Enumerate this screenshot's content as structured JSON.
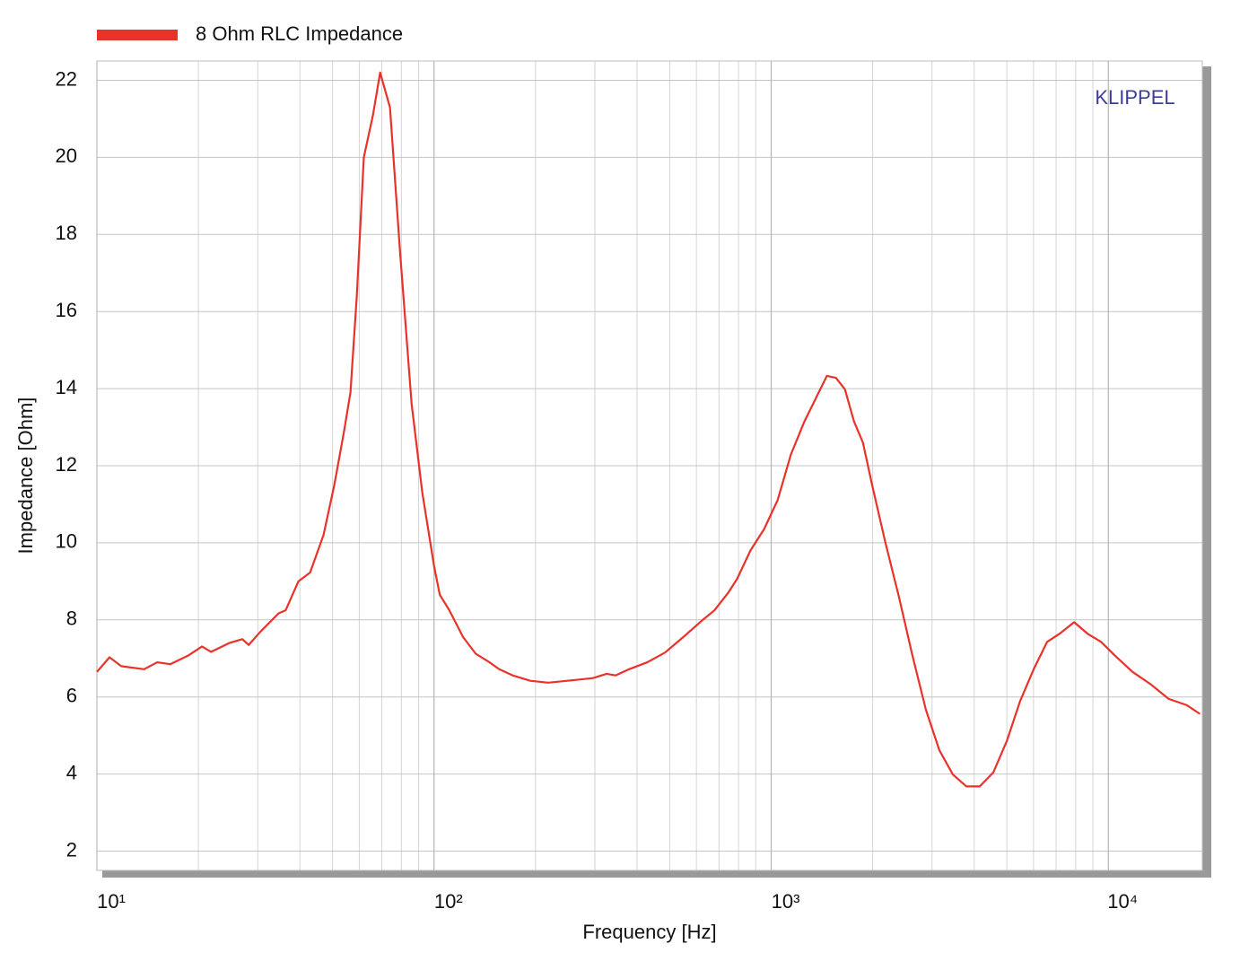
{
  "chart_data": {
    "type": "line",
    "xlabel": "Frequency  [Hz]",
    "ylabel": "Impedance  [Ohm]",
    "annotation": "KLIPPEL",
    "xscale": "log",
    "grid": true,
    "legend": "top-left",
    "xlim": [
      10,
      19000
    ],
    "ylim": [
      1.5,
      22.5
    ],
    "xticks": [
      {
        "value": 10,
        "label": "10¹"
      },
      {
        "value": 100,
        "label": "10²"
      },
      {
        "value": 1000,
        "label": "10³"
      },
      {
        "value": 10000,
        "label": "10⁴"
      }
    ],
    "x_minor_ticks": [
      20,
      30,
      40,
      50,
      60,
      70,
      80,
      90,
      200,
      300,
      400,
      500,
      600,
      700,
      800,
      900,
      2000,
      3000,
      4000,
      5000,
      6000,
      7000,
      8000,
      9000
    ],
    "yticks": [
      2,
      4,
      6,
      8,
      10,
      12,
      14,
      16,
      18,
      20,
      22
    ],
    "x": [
      10,
      10.9,
      11.8,
      13.8,
      15.1,
      16.5,
      18.7,
      20.5,
      21.8,
      24.7,
      27.0,
      28.2,
      30.6,
      34.6,
      36.3,
      39.6,
      42.9,
      47.0,
      50.6,
      54.1,
      56.5,
      59.0,
      61.9,
      65.9,
      69.2,
      74.0,
      79.2,
      85.8,
      92.3,
      100,
      104,
      111,
      122,
      133,
      146,
      156,
      171,
      193,
      218,
      262,
      296,
      325,
      346,
      379,
      429,
      484,
      548,
      619,
      679,
      745,
      792,
      868,
      952,
      1044,
      1145,
      1255,
      1376,
      1463,
      1556,
      1655,
      1760,
      1871,
      1990,
      2182,
      2392,
      2623,
      2876,
      3153,
      3457,
      3790,
      4156,
      4557,
      4996,
      5478,
      6006,
      6585,
      7220,
      7917,
      8680,
      9517,
      10440,
      11800,
      13350,
      15100,
      17060,
      18700
    ],
    "series": [
      {
        "name": "8 Ohm RLC Impedance",
        "color": "#e8322a",
        "values": [
          6.65,
          7.03,
          6.8,
          6.72,
          6.9,
          6.85,
          7.08,
          7.31,
          7.17,
          7.4,
          7.5,
          7.35,
          7.7,
          8.17,
          8.25,
          9.0,
          9.23,
          10.2,
          11.5,
          12.9,
          13.9,
          16.4,
          20.0,
          21.1,
          22.2,
          21.3,
          17.6,
          13.6,
          11.3,
          9.4,
          8.65,
          8.25,
          7.55,
          7.12,
          6.9,
          6.72,
          6.56,
          6.42,
          6.37,
          6.44,
          6.49,
          6.6,
          6.56,
          6.72,
          6.9,
          7.15,
          7.55,
          7.96,
          8.25,
          8.7,
          9.06,
          9.8,
          10.35,
          11.1,
          12.3,
          13.15,
          13.86,
          14.33,
          14.28,
          13.98,
          13.15,
          12.6,
          11.52,
          10.0,
          8.6,
          7.08,
          5.67,
          4.62,
          3.99,
          3.68,
          3.68,
          4.04,
          4.85,
          5.9,
          6.72,
          7.43,
          7.66,
          7.94,
          7.64,
          7.43,
          7.08,
          6.65,
          6.33,
          5.95,
          5.79,
          5.56
        ]
      }
    ]
  }
}
